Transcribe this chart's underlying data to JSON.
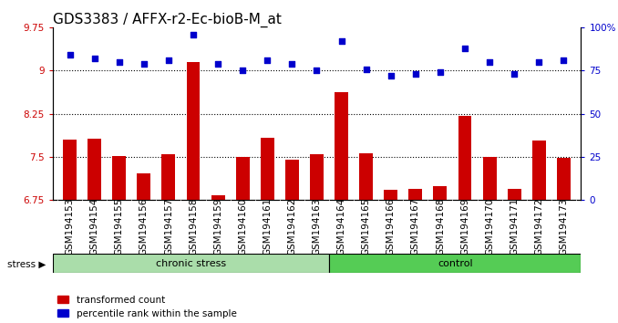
{
  "title": "GDS3383 / AFFX-r2-Ec-bioB-M_at",
  "categories": [
    "GSM194153",
    "GSM194154",
    "GSM194155",
    "GSM194156",
    "GSM194157",
    "GSM194158",
    "GSM194159",
    "GSM194160",
    "GSM194161",
    "GSM194162",
    "GSM194163",
    "GSM194164",
    "GSM194165",
    "GSM194166",
    "GSM194167",
    "GSM194168",
    "GSM194169",
    "GSM194170",
    "GSM194171",
    "GSM194172",
    "GSM194173"
  ],
  "bar_values": [
    7.8,
    7.82,
    7.52,
    7.21,
    7.55,
    9.15,
    6.84,
    7.5,
    7.83,
    7.45,
    7.55,
    8.62,
    7.57,
    6.93,
    6.94,
    7.0,
    8.22,
    7.5,
    6.94,
    7.78,
    7.48
  ],
  "dot_values": [
    84,
    82,
    80,
    79,
    81,
    96,
    79,
    75,
    81,
    79,
    75,
    92,
    76,
    72,
    73,
    74,
    88,
    80,
    73,
    80,
    81
  ],
  "bar_color": "#cc0000",
  "dot_color": "#0000cc",
  "ylim_left": [
    6.75,
    9.75
  ],
  "ylim_right": [
    0,
    100
  ],
  "yticks_left": [
    6.75,
    7.5,
    8.25,
    9.0,
    9.75
  ],
  "ytick_labels_left": [
    "6.75",
    "7.5",
    "8.25",
    "9",
    "9.75"
  ],
  "yticks_right": [
    0,
    25,
    50,
    75,
    100
  ],
  "ytick_labels_right": [
    "0",
    "25",
    "50",
    "75",
    "100%"
  ],
  "hlines": [
    7.5,
    8.25,
    9.0
  ],
  "chronic_count": 11,
  "control_count": 10,
  "group_labels": [
    "chronic stress",
    "control"
  ],
  "chronic_color": "#aaddaa",
  "control_color": "#55cc55",
  "stress_arrow": "stress ▶",
  "legend_labels": [
    "transformed count",
    "percentile rank within the sample"
  ],
  "legend_colors": [
    "#cc0000",
    "#0000cc"
  ],
  "title_fontsize": 11,
  "tick_fontsize": 7.5,
  "label_fontsize": 8
}
